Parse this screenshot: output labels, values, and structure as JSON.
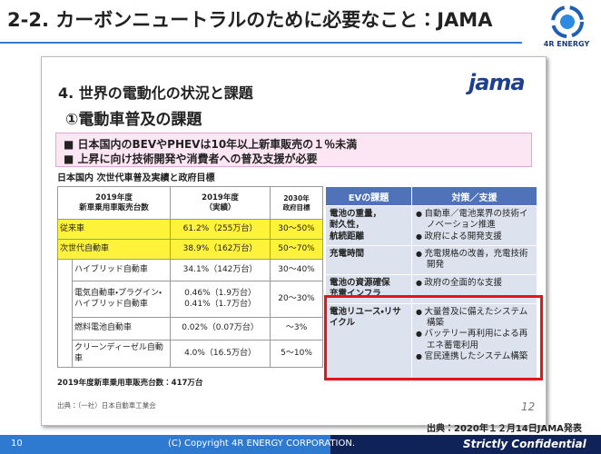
{
  "header": {
    "title": "2-2. カーボンニュートラルのために必要なこと：JAMA",
    "logo": "4R ENERGY"
  },
  "slide": {
    "heading": "4. 世界の電動化の状況と課題",
    "subheading": "①電動車普及の課題",
    "logo": "jama",
    "bullets": [
      "日本国内のBEVやPHEVは10年以上新車販売の１％未満",
      "上昇に向け技術開発や消費者への普及支援が必要"
    ],
    "table_title": "日本国内  次世代車普及実績と政府目標",
    "left_table": {
      "header": [
        "2019年度\n新車乗用車販売台数",
        "2019年度\n（実績）",
        "2030年\n政府目標"
      ],
      "rows": [
        [
          "従来車",
          "61.2%（255万台）",
          "30〜50%"
        ],
        [
          "次世代自動車",
          "38.9%（162万台）",
          "50〜70%"
        ],
        [
          "ハイブリッド自動車",
          "34.1%（142万台）",
          "30〜40%"
        ],
        [
          "電気自動車・プラグイン・ハイブリッド自動車",
          "0.46%（1.9万台）\n0.41%（1.7万台）",
          "20〜30%"
        ],
        [
          "燃料電池自動車",
          "0.02%（0.07万台）",
          "〜3%"
        ],
        [
          "クリーンディーゼル自動車",
          "4.0%（16.5万台）",
          "5〜10%"
        ]
      ]
    },
    "note": "2019年度新車乗用車販売台数：417万台",
    "source": "出典：（一社）日本自動車工業会",
    "page": "12",
    "right_table": {
      "header": [
        "EVの課題",
        "対策／支援"
      ],
      "rows": [
        {
          "issue": "電池の重量，\n耐久性，\n航続距離",
          "measures": [
            "自動車／電池業界の技術イノベーション推進",
            "政府による開発支援"
          ]
        },
        {
          "issue": "充電時間",
          "measures": [
            "充電規格の改善，充電技術開発"
          ]
        },
        {
          "issue": "電池の資源確保\n充電インフラ",
          "measures": [
            "政府の全面的な支援"
          ]
        },
        {
          "issue": "電池リユース・リサイクル",
          "measures": [
            "大量普及に備えたシステム構築",
            "バッテリー再利用による再エネ蓄電利用",
            "官民連携したシステム構築"
          ]
        }
      ]
    }
  },
  "source": "出典：2020年１２月14日JAMA発表",
  "footer": {
    "page": "10",
    "copyright": "(C) Copyright 4R ENERGY CORPORATION.",
    "confidential": "Strictly Confidential"
  }
}
